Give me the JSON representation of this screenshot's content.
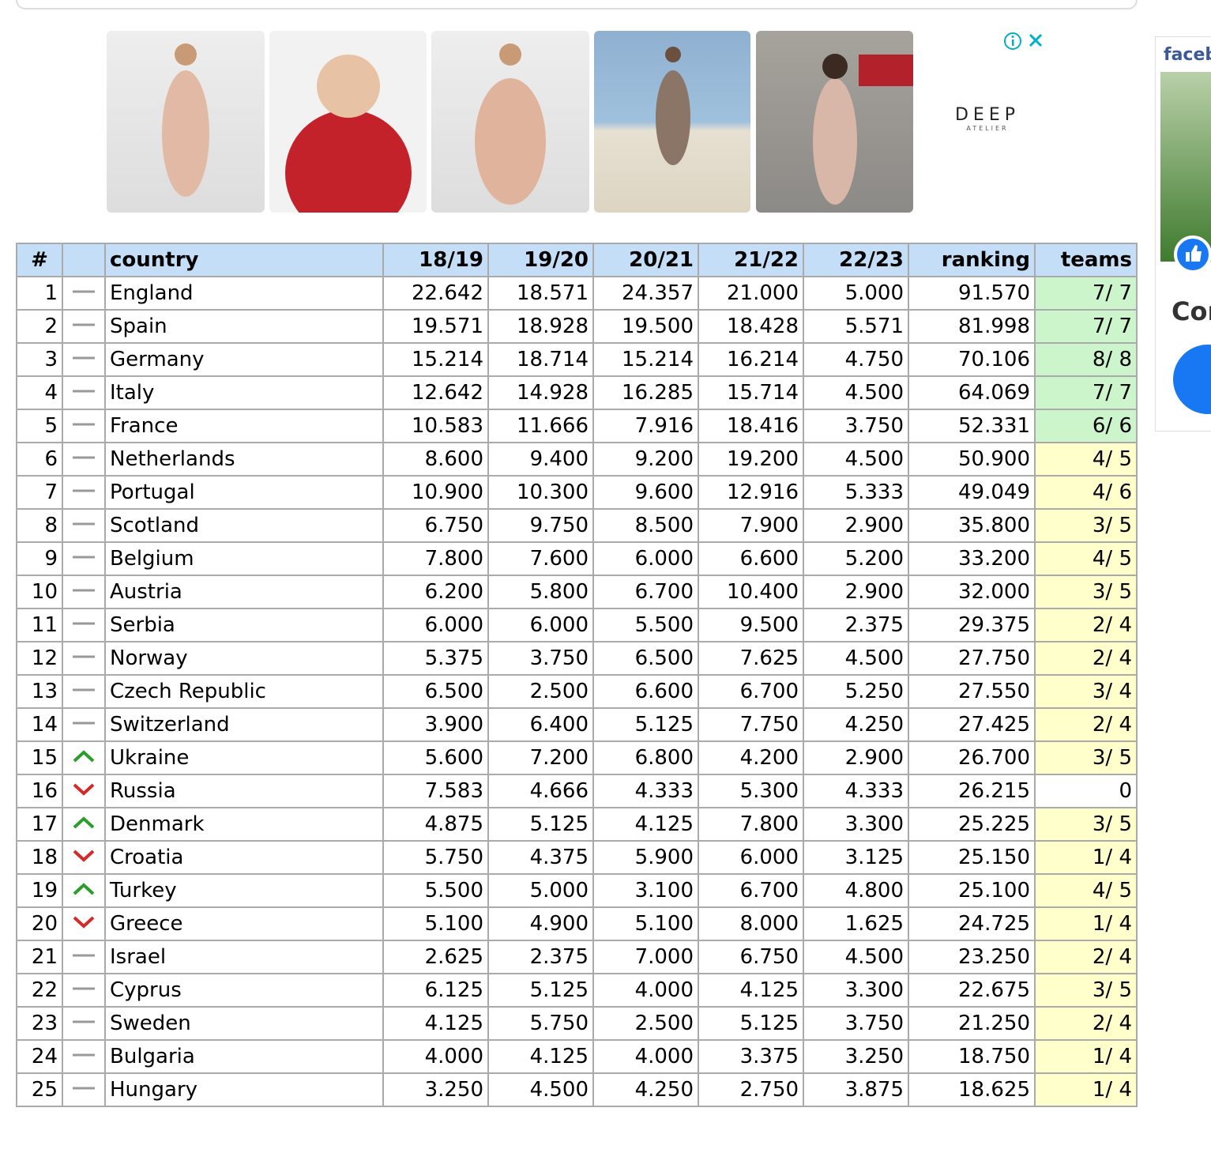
{
  "ad": {
    "brand": "DEEP",
    "brand_sub": "ATELIER"
  },
  "sidebar": {
    "facebook": "faceb",
    "cut_text": "Cor"
  },
  "table": {
    "header": [
      "#",
      "",
      "country",
      "18/19",
      "19/20",
      "20/21",
      "21/22",
      "22/23",
      "ranking",
      "teams"
    ],
    "rows": [
      {
        "cells": [
          "1",
          "England",
          "22.642",
          "18.571",
          "24.357",
          "21.000",
          "5.000",
          "91.570",
          "7/ 7"
        ],
        "trend": "flat",
        "teams_color": "#ccf5cc"
      },
      {
        "cells": [
          "2",
          "Spain",
          "19.571",
          "18.928",
          "19.500",
          "18.428",
          "5.571",
          "81.998",
          "7/ 7"
        ],
        "trend": "flat",
        "teams_color": "#ccf5cc"
      },
      {
        "cells": [
          "3",
          "Germany",
          "15.214",
          "18.714",
          "15.214",
          "16.214",
          "4.750",
          "70.106",
          "8/ 8"
        ],
        "trend": "flat",
        "teams_color": "#ccf5cc"
      },
      {
        "cells": [
          "4",
          "Italy",
          "12.642",
          "14.928",
          "16.285",
          "15.714",
          "4.500",
          "64.069",
          "7/ 7"
        ],
        "trend": "flat",
        "teams_color": "#ccf5cc"
      },
      {
        "cells": [
          "5",
          "France",
          "10.583",
          "11.666",
          "7.916",
          "18.416",
          "3.750",
          "52.331",
          "6/ 6"
        ],
        "trend": "flat",
        "teams_color": "#ccf5cc"
      },
      {
        "cells": [
          "6",
          "Netherlands",
          "8.600",
          "9.400",
          "9.200",
          "19.200",
          "4.500",
          "50.900",
          "4/ 5"
        ],
        "trend": "flat",
        "teams_color": "#ffffcc"
      },
      {
        "cells": [
          "7",
          "Portugal",
          "10.900",
          "10.300",
          "9.600",
          "12.916",
          "5.333",
          "49.049",
          "4/ 6"
        ],
        "trend": "flat",
        "teams_color": "#ffffcc"
      },
      {
        "cells": [
          "8",
          "Scotland",
          "6.750",
          "9.750",
          "8.500",
          "7.900",
          "2.900",
          "35.800",
          "3/ 5"
        ],
        "trend": "flat",
        "teams_color": "#ffffcc"
      },
      {
        "cells": [
          "9",
          "Belgium",
          "7.800",
          "7.600",
          "6.000",
          "6.600",
          "5.200",
          "33.200",
          "4/ 5"
        ],
        "trend": "flat",
        "teams_color": "#ffffcc"
      },
      {
        "cells": [
          "10",
          "Austria",
          "6.200",
          "5.800",
          "6.700",
          "10.400",
          "2.900",
          "32.000",
          "3/ 5"
        ],
        "trend": "flat",
        "teams_color": "#ffffcc"
      },
      {
        "cells": [
          "11",
          "Serbia",
          "6.000",
          "6.000",
          "5.500",
          "9.500",
          "2.375",
          "29.375",
          "2/ 4"
        ],
        "trend": "flat",
        "teams_color": "#ffffcc"
      },
      {
        "cells": [
          "12",
          "Norway",
          "5.375",
          "3.750",
          "6.500",
          "7.625",
          "4.500",
          "27.750",
          "2/ 4"
        ],
        "trend": "flat",
        "teams_color": "#ffffcc"
      },
      {
        "cells": [
          "13",
          "Czech Republic",
          "6.500",
          "2.500",
          "6.600",
          "6.700",
          "5.250",
          "27.550",
          "3/ 4"
        ],
        "trend": "flat",
        "teams_color": "#ffffcc"
      },
      {
        "cells": [
          "14",
          "Switzerland",
          "3.900",
          "6.400",
          "5.125",
          "7.750",
          "4.250",
          "27.425",
          "2/ 4"
        ],
        "trend": "flat",
        "teams_color": "#ffffcc"
      },
      {
        "cells": [
          "15",
          "Ukraine",
          "5.600",
          "7.200",
          "6.800",
          "4.200",
          "2.900",
          "26.700",
          "3/ 5"
        ],
        "trend": "up",
        "teams_color": "#ffffcc"
      },
      {
        "cells": [
          "16",
          "Russia",
          "7.583",
          "4.666",
          "4.333",
          "5.300",
          "4.333",
          "26.215",
          "0"
        ],
        "trend": "down",
        "teams_color": "#ffffff"
      },
      {
        "cells": [
          "17",
          "Denmark",
          "4.875",
          "5.125",
          "4.125",
          "7.800",
          "3.300",
          "25.225",
          "3/ 5"
        ],
        "trend": "up",
        "teams_color": "#ffffcc"
      },
      {
        "cells": [
          "18",
          "Croatia",
          "5.750",
          "4.375",
          "5.900",
          "6.000",
          "3.125",
          "25.150",
          "1/ 4"
        ],
        "trend": "down",
        "teams_color": "#ffffcc"
      },
      {
        "cells": [
          "19",
          "Turkey",
          "5.500",
          "5.000",
          "3.100",
          "6.700",
          "4.800",
          "25.100",
          "4/ 5"
        ],
        "trend": "up",
        "teams_color": "#ffffcc"
      },
      {
        "cells": [
          "20",
          "Greece",
          "5.100",
          "4.900",
          "5.100",
          "8.000",
          "1.625",
          "24.725",
          "1/ 4"
        ],
        "trend": "down",
        "teams_color": "#ffffcc"
      },
      {
        "cells": [
          "21",
          "Israel",
          "2.625",
          "2.375",
          "7.000",
          "6.750",
          "4.500",
          "23.250",
          "2/ 4"
        ],
        "trend": "flat",
        "teams_color": "#ffffcc"
      },
      {
        "cells": [
          "22",
          "Cyprus",
          "6.125",
          "5.125",
          "4.000",
          "4.125",
          "3.300",
          "22.675",
          "3/ 5"
        ],
        "trend": "flat",
        "teams_color": "#ffffcc"
      },
      {
        "cells": [
          "23",
          "Sweden",
          "4.125",
          "5.750",
          "2.500",
          "5.125",
          "3.750",
          "21.250",
          "2/ 4"
        ],
        "trend": "flat",
        "teams_color": "#ffffcc"
      },
      {
        "cells": [
          "24",
          "Bulgaria",
          "4.000",
          "4.125",
          "4.000",
          "3.375",
          "3.250",
          "18.750",
          "1/ 4"
        ],
        "trend": "flat",
        "teams_color": "#ffffcc"
      },
      {
        "cells": [
          "25",
          "Hungary",
          "3.250",
          "4.500",
          "4.250",
          "2.750",
          "3.875",
          "18.625",
          "1/ 4"
        ],
        "trend": "flat",
        "teams_color": "#ffffcc"
      }
    ]
  }
}
